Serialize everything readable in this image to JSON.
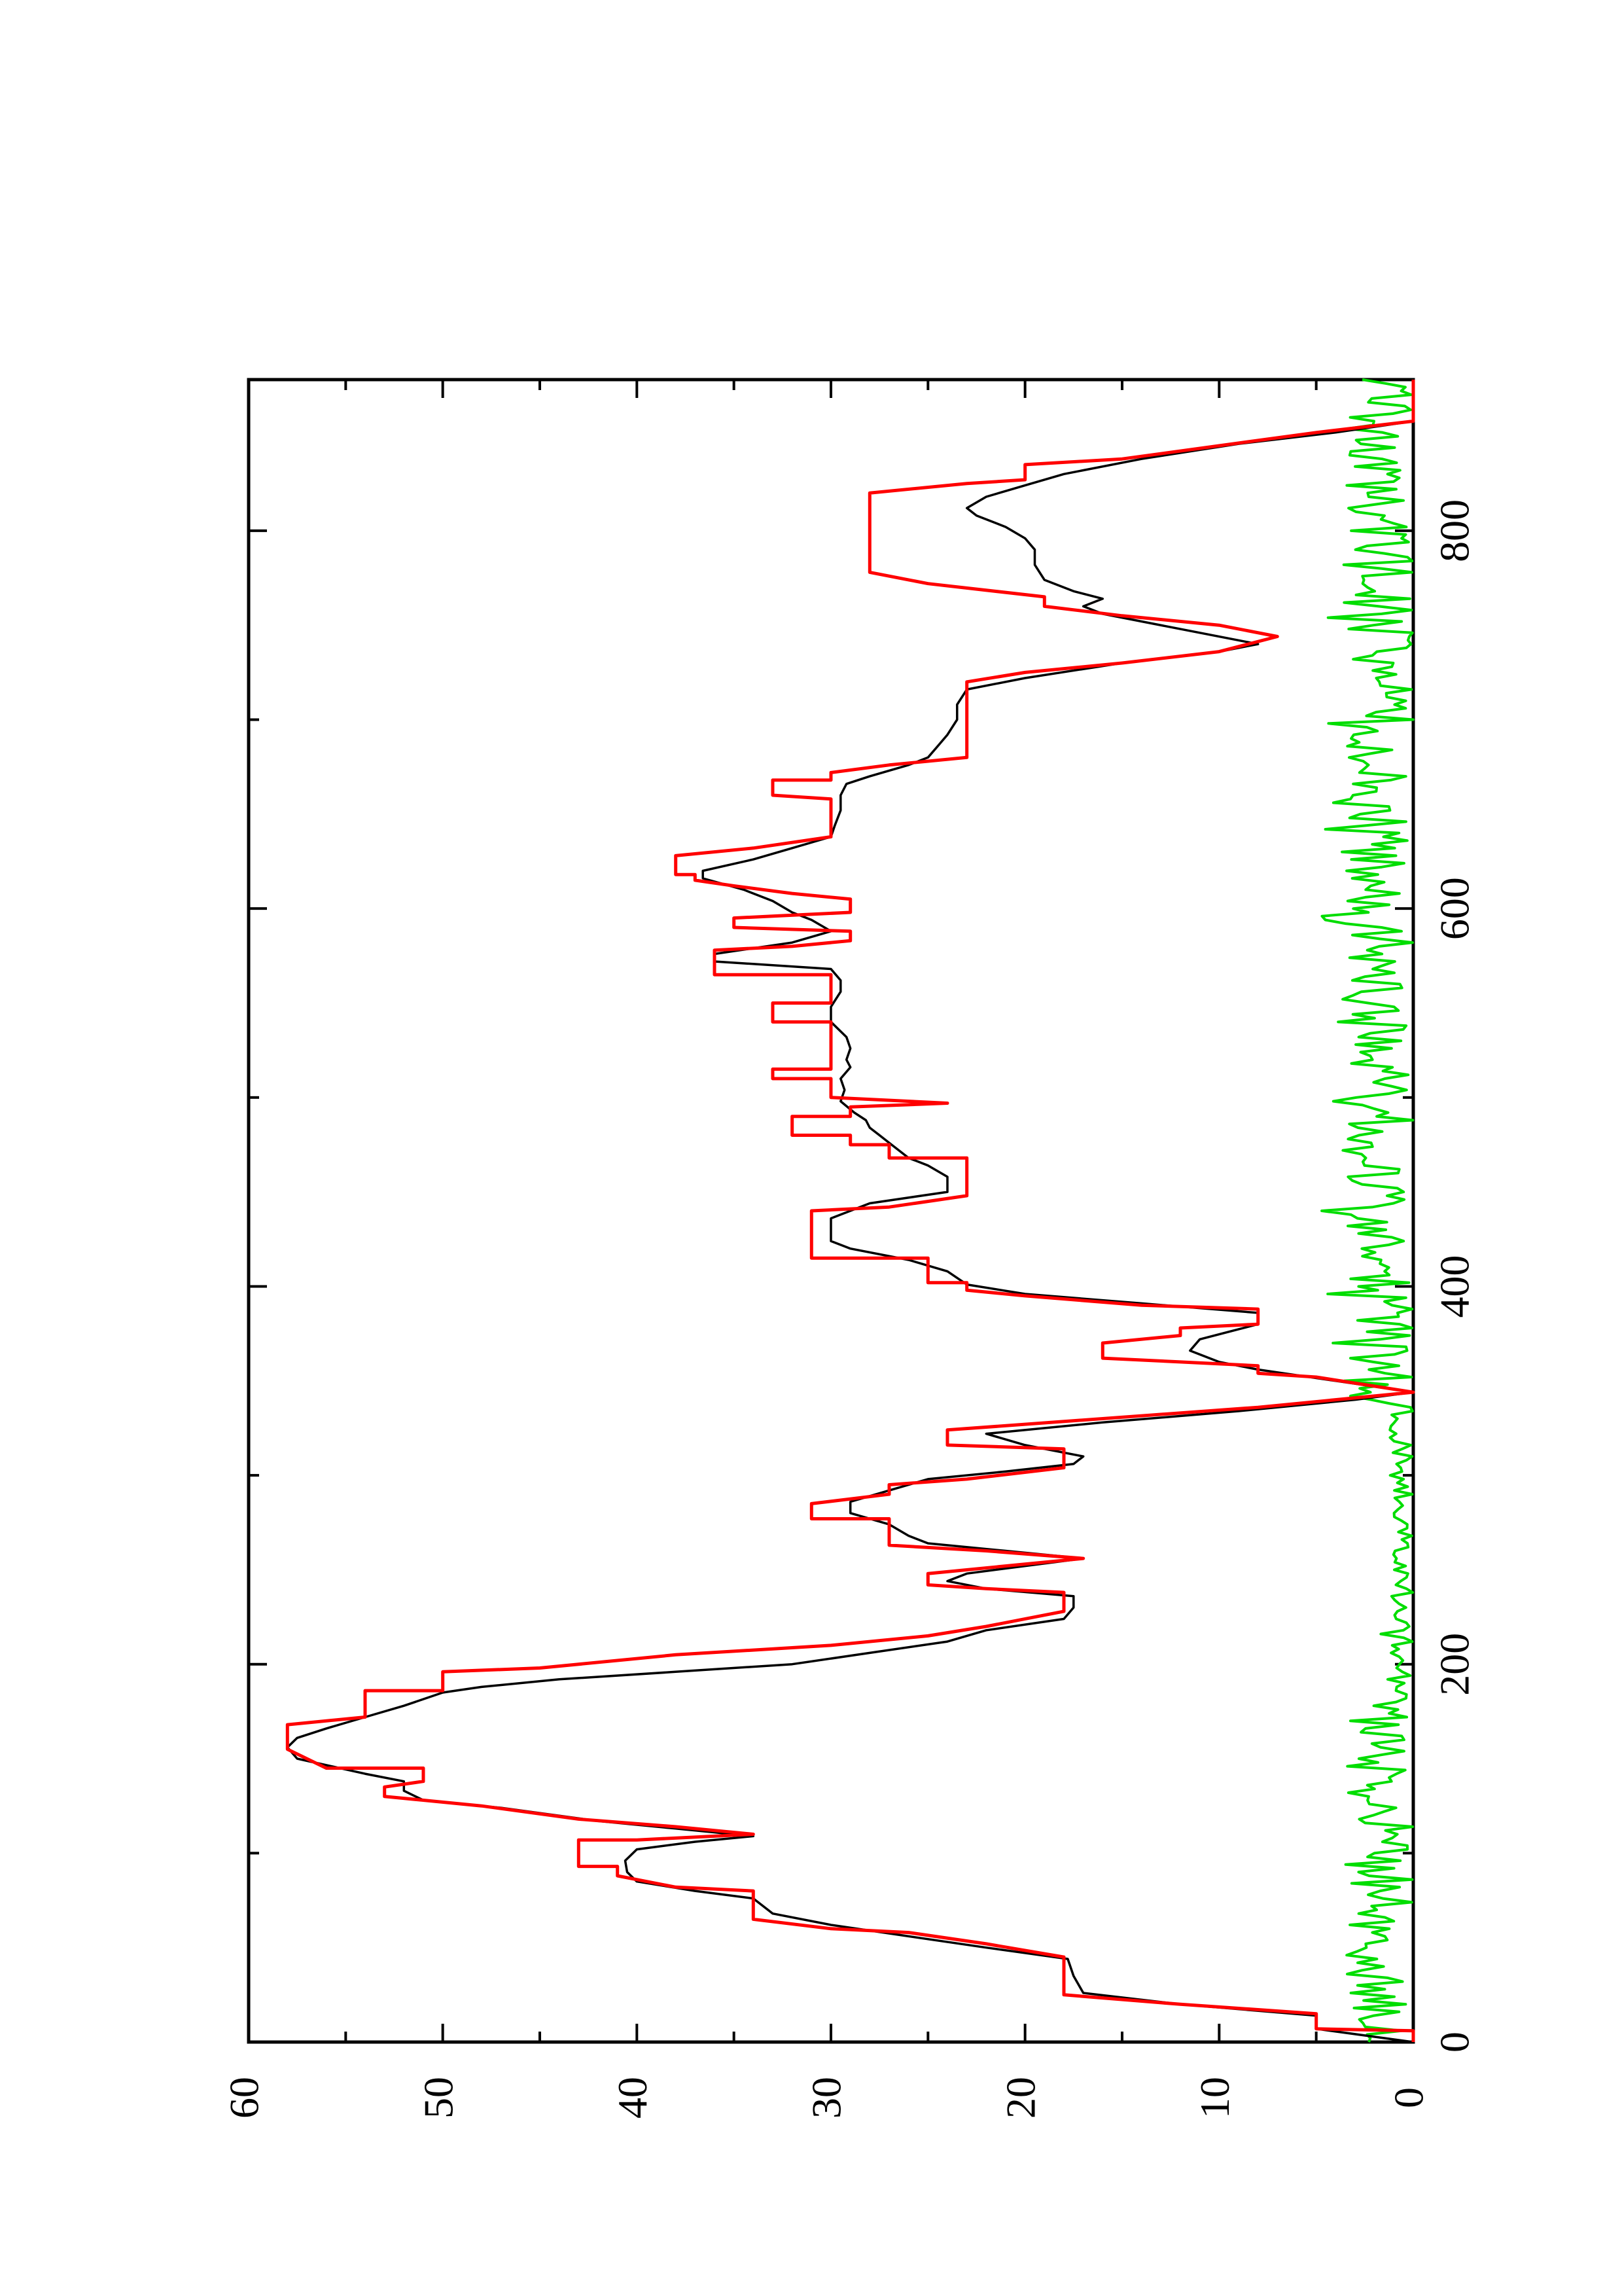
{
  "chart_data": {
    "type": "line",
    "orientation": "rotated 90° counter-clockwise (page landscape plot)",
    "xlim": [
      0,
      880
    ],
    "ylim": [
      0,
      60
    ],
    "x_ticks": [
      0,
      200,
      400,
      600,
      800
    ],
    "y_ticks": [
      0,
      10,
      20,
      30,
      40,
      50,
      60
    ],
    "x_tick_labels": [
      "0",
      "200",
      "400",
      "600",
      "800"
    ],
    "y_tick_labels": [
      "0",
      "10",
      "20",
      "30",
      "40",
      "50",
      "60"
    ],
    "x_minor_ticks": [
      100,
      300,
      500,
      700
    ],
    "y_minor_ticks": [
      5,
      15,
      25,
      35,
      45,
      55
    ],
    "grid": false,
    "legend": "none",
    "series": [
      {
        "color": "#ff0000",
        "points": [
          [
            0,
            0
          ],
          [
            6,
            0
          ],
          [
            7,
            5
          ],
          [
            15,
            5
          ],
          [
            20,
            12
          ],
          [
            25,
            18
          ],
          [
            45,
            18
          ],
          [
            52,
            22
          ],
          [
            58,
            26
          ],
          [
            60,
            30
          ],
          [
            65,
            34
          ],
          [
            80,
            34
          ],
          [
            82,
            38
          ],
          [
            88,
            41
          ],
          [
            93,
            41
          ],
          [
            93,
            43
          ],
          [
            107,
            43
          ],
          [
            107,
            40
          ],
          [
            110,
            34
          ],
          [
            114,
            38
          ],
          [
            118,
            43
          ],
          [
            125,
            48
          ],
          [
            128,
            51
          ],
          [
            130,
            53
          ],
          [
            135,
            53
          ],
          [
            138,
            51
          ],
          [
            145,
            51
          ],
          [
            145,
            56
          ],
          [
            155,
            58
          ],
          [
            168,
            58
          ],
          [
            172,
            54
          ],
          [
            186,
            54
          ],
          [
            186,
            50
          ],
          [
            196,
            50
          ],
          [
            198,
            45
          ],
          [
            205,
            38
          ],
          [
            210,
            30
          ],
          [
            215,
            25
          ],
          [
            220,
            22
          ],
          [
            228,
            18
          ],
          [
            238,
            18
          ],
          [
            240,
            22
          ],
          [
            242,
            25
          ],
          [
            248,
            25
          ],
          [
            253,
            20
          ],
          [
            256,
            17
          ],
          [
            260,
            22
          ],
          [
            263,
            27
          ],
          [
            277,
            27
          ],
          [
            277,
            31
          ],
          [
            285,
            31
          ],
          [
            290,
            27
          ],
          [
            295,
            27
          ],
          [
            298,
            23
          ],
          [
            304,
            18
          ],
          [
            314,
            18
          ],
          [
            316,
            24
          ],
          [
            324,
            24
          ],
          [
            330,
            16
          ],
          [
            336,
            8
          ],
          [
            344,
            0
          ],
          [
            352,
            5
          ],
          [
            354,
            8
          ],
          [
            358,
            8
          ],
          [
            360,
            12
          ],
          [
            362,
            16
          ],
          [
            370,
            16
          ],
          [
            374,
            12
          ],
          [
            378,
            12
          ],
          [
            380,
            8
          ],
          [
            388,
            8
          ],
          [
            390,
            14
          ],
          [
            395,
            20
          ],
          [
            398,
            23
          ],
          [
            402,
            23
          ],
          [
            402,
            25
          ],
          [
            415,
            25
          ],
          [
            415,
            31
          ],
          [
            440,
            31
          ],
          [
            442,
            27
          ],
          [
            448,
            23
          ],
          [
            468,
            23
          ],
          [
            468,
            27
          ],
          [
            475,
            27
          ],
          [
            475,
            29
          ],
          [
            480,
            29
          ],
          [
            480,
            32
          ],
          [
            490,
            32
          ],
          [
            490,
            29
          ],
          [
            495,
            29
          ],
          [
            497,
            24
          ],
          [
            500,
            30
          ],
          [
            510,
            30
          ],
          [
            510,
            33
          ],
          [
            515,
            33
          ],
          [
            515,
            30
          ],
          [
            540,
            30
          ],
          [
            540,
            33
          ],
          [
            550,
            33
          ],
          [
            550,
            30
          ],
          [
            565,
            30
          ],
          [
            565,
            36
          ],
          [
            578,
            36
          ],
          [
            580,
            32
          ],
          [
            583,
            29
          ],
          [
            588,
            29
          ],
          [
            590,
            35
          ],
          [
            595,
            35
          ],
          [
            598,
            29
          ],
          [
            605,
            29
          ],
          [
            608,
            32
          ],
          [
            612,
            35
          ],
          [
            615,
            37
          ],
          [
            618,
            37
          ],
          [
            618,
            38
          ],
          [
            628,
            38
          ],
          [
            632,
            34
          ],
          [
            638,
            30
          ],
          [
            650,
            30
          ],
          [
            658,
            30
          ],
          [
            660,
            33
          ],
          [
            668,
            33
          ],
          [
            668,
            30
          ],
          [
            672,
            30
          ],
          [
            676,
            27
          ],
          [
            680,
            23
          ],
          [
            720,
            23
          ],
          [
            725,
            20
          ],
          [
            730,
            15
          ],
          [
            736,
            10
          ],
          [
            744,
            7
          ],
          [
            750,
            10
          ],
          [
            755,
            15
          ],
          [
            760,
            19
          ],
          [
            765,
            19
          ],
          [
            772,
            25
          ],
          [
            778,
            28
          ],
          [
            820,
            28
          ],
          [
            825,
            23
          ],
          [
            827,
            20
          ],
          [
            835,
            20
          ],
          [
            838,
            15
          ],
          [
            845,
            10
          ],
          [
            852,
            5
          ],
          [
            858,
            0
          ],
          [
            880,
            0
          ]
        ]
      },
      {
        "color": "#000000",
        "points": [
          [
            0,
            0
          ],
          [
            7,
            5
          ],
          [
            14,
            5
          ],
          [
            20,
            12
          ],
          [
            26,
            17
          ],
          [
            35,
            17.5
          ],
          [
            44,
            17.8
          ],
          [
            50,
            22
          ],
          [
            56,
            26
          ],
          [
            62,
            30
          ],
          [
            68,
            33
          ],
          [
            76,
            34
          ],
          [
            80,
            37
          ],
          [
            85,
            40
          ],
          [
            90,
            40.5
          ],
          [
            96,
            40.6
          ],
          [
            102,
            40
          ],
          [
            106,
            37
          ],
          [
            109,
            34
          ],
          [
            113,
            38
          ],
          [
            117,
            42
          ],
          [
            124,
            47
          ],
          [
            128,
            51
          ],
          [
            133,
            52
          ],
          [
            138,
            52
          ],
          [
            142,
            54
          ],
          [
            150,
            57.5
          ],
          [
            156,
            58
          ],
          [
            161,
            57.5
          ],
          [
            166,
            56
          ],
          [
            172,
            54
          ],
          [
            178,
            52
          ],
          [
            185,
            50
          ],
          [
            188,
            48
          ],
          [
            192,
            44
          ],
          [
            196,
            38
          ],
          [
            200,
            32
          ],
          [
            206,
            28
          ],
          [
            212,
            24
          ],
          [
            218,
            22
          ],
          [
            224,
            18
          ],
          [
            230,
            17.5
          ],
          [
            236,
            17.5
          ],
          [
            240,
            22
          ],
          [
            244,
            24
          ],
          [
            248,
            23
          ],
          [
            252,
            20
          ],
          [
            256,
            17
          ],
          [
            260,
            21
          ],
          [
            264,
            25
          ],
          [
            268,
            26
          ],
          [
            274,
            27
          ],
          [
            280,
            29
          ],
          [
            286,
            29
          ],
          [
            292,
            27
          ],
          [
            298,
            25
          ],
          [
            302,
            21
          ],
          [
            306,
            17.5
          ],
          [
            310,
            17
          ],
          [
            316,
            20
          ],
          [
            322,
            22
          ],
          [
            328,
            16
          ],
          [
            334,
            9
          ],
          [
            340,
            3
          ],
          [
            344,
            0
          ],
          [
            350,
            4
          ],
          [
            356,
            8
          ],
          [
            360,
            10
          ],
          [
            366,
            11.5
          ],
          [
            372,
            11
          ],
          [
            380,
            8
          ],
          [
            386,
            8
          ],
          [
            391,
            14
          ],
          [
            396,
            20
          ],
          [
            401,
            23
          ],
          [
            408,
            24
          ],
          [
            414,
            26
          ],
          [
            420,
            29
          ],
          [
            424,
            30
          ],
          [
            430,
            30
          ],
          [
            436,
            30
          ],
          [
            444,
            28
          ],
          [
            450,
            24
          ],
          [
            458,
            24
          ],
          [
            464,
            25
          ],
          [
            468,
            26
          ],
          [
            472,
            26.5
          ],
          [
            476,
            27
          ],
          [
            480,
            27.5
          ],
          [
            484,
            28
          ],
          [
            488,
            28.2
          ],
          [
            492,
            28.8
          ],
          [
            498,
            29.5
          ],
          [
            504,
            29.3
          ],
          [
            510,
            29.5
          ],
          [
            516,
            29
          ],
          [
            520,
            29.2
          ],
          [
            526,
            29
          ],
          [
            532,
            29.2
          ],
          [
            540,
            30
          ],
          [
            548,
            30
          ],
          [
            556,
            29.5
          ],
          [
            562,
            29.5
          ],
          [
            568,
            30
          ],
          [
            572,
            36
          ],
          [
            576,
            36
          ],
          [
            582,
            32
          ],
          [
            588,
            30
          ],
          [
            594,
            31
          ],
          [
            598,
            32
          ],
          [
            604,
            33
          ],
          [
            610,
            34.5
          ],
          [
            616,
            36.6
          ],
          [
            620,
            36.6
          ],
          [
            626,
            34
          ],
          [
            632,
            32
          ],
          [
            638,
            30
          ],
          [
            644,
            29.8
          ],
          [
            652,
            29.5
          ],
          [
            660,
            29.5
          ],
          [
            666,
            29.2
          ],
          [
            670,
            28
          ],
          [
            676,
            26
          ],
          [
            680,
            25
          ],
          [
            686,
            24.5
          ],
          [
            692,
            24
          ],
          [
            700,
            23.5
          ],
          [
            708,
            23.5
          ],
          [
            716,
            23
          ],
          [
            722,
            20
          ],
          [
            730,
            15
          ],
          [
            736,
            10
          ],
          [
            740,
            8
          ],
          [
            746,
            11
          ],
          [
            752,
            14
          ],
          [
            756,
            16
          ],
          [
            760,
            17
          ],
          [
            764,
            16
          ],
          [
            768,
            17.5
          ],
          [
            774,
            19
          ],
          [
            782,
            19.5
          ],
          [
            790,
            19.5
          ],
          [
            796,
            20
          ],
          [
            802,
            21
          ],
          [
            808,
            22.5
          ],
          [
            812,
            23
          ],
          [
            818,
            22
          ],
          [
            824,
            20
          ],
          [
            830,
            18
          ],
          [
            838,
            14
          ],
          [
            846,
            9
          ],
          [
            852,
            4
          ],
          [
            858,
            0
          ]
        ]
      },
      {
        "color": "#00dd00",
        "noise_amplitude": 3.5,
        "quiet_intervals": [
          [
            180,
            340
          ]
        ],
        "x_range": [
          0,
          880
        ]
      }
    ]
  }
}
